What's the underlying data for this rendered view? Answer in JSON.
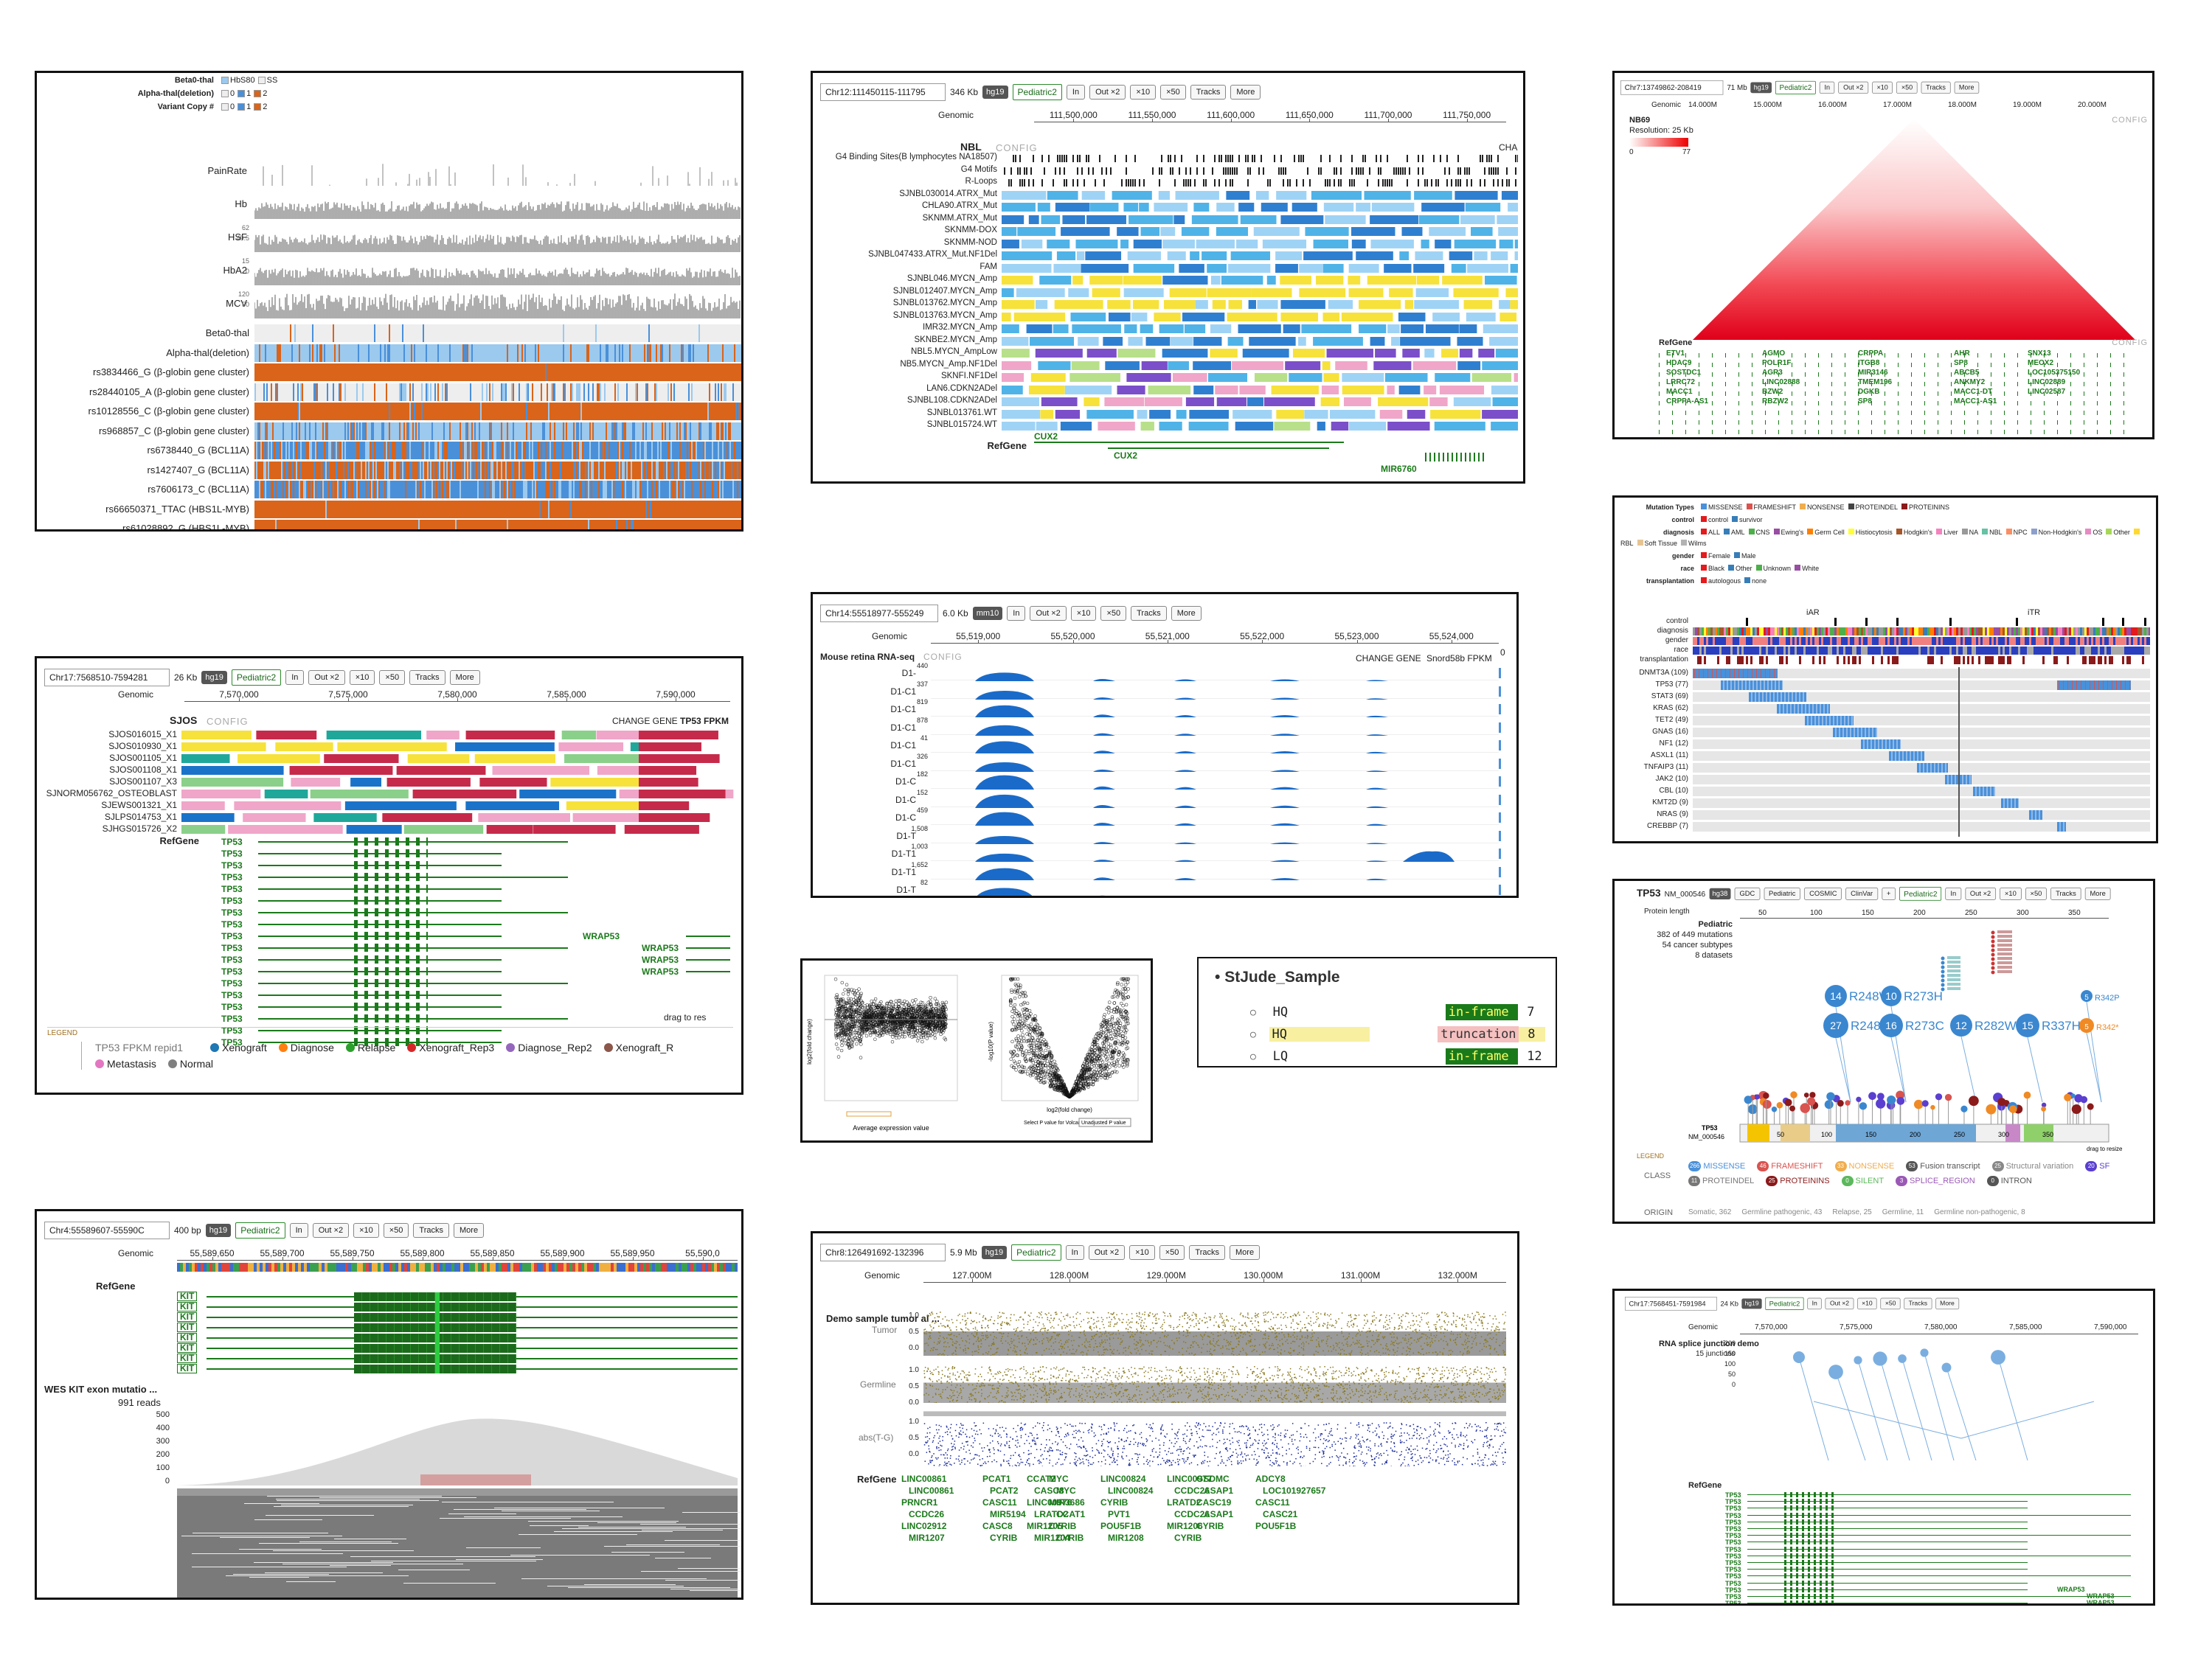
{
  "panel1": {
    "legend": [
      {
        "label": "Beta0-thal",
        "items": [
          "HbS80",
          "SS"
        ]
      },
      {
        "label": "Alpha-thal(deletion)",
        "items": [
          "0",
          "1",
          "2"
        ]
      },
      {
        "label": "Variant Copy #",
        "items": [
          "0",
          "1",
          "2"
        ]
      }
    ],
    "cont_tracks": [
      {
        "label": "PainRate",
        "ticks": []
      },
      {
        "label": "Hb",
        "ticks": []
      },
      {
        "label": "HSF",
        "ticks": [
          "62",
          "49.5"
        ]
      },
      {
        "label": "HbA2",
        "ticks": [
          "15",
          "0"
        ]
      },
      {
        "label": "MCV",
        "ticks": [
          "120",
          "50"
        ]
      }
    ],
    "cat_tracks": [
      "Beta0-thal",
      "Alpha-thal(deletion)",
      "rs3834466_G (β-globin gene cluster)",
      "rs28440105_A (β-globin gene cluster)",
      "rs10128556_C (β-globin gene cluster)",
      "rs968857_C (β-globin gene cluster)",
      "rs6738440_G (BCL11A)",
      "rs1427407_G (BCL11A)",
      "rs7606173_C (BCL11A)",
      "rs66650371_TTAC (HBS1L-MYB)",
      "rs61028892_G (HBS1L-MYB)"
    ],
    "colors": {
      "orange": "#d9641a",
      "blue": "#4a90d9",
      "lightblue": "#9cc9ee",
      "gray": "#888888"
    }
  },
  "panel2": {
    "coord": "Chr12:111450115-111795",
    "size": "346 Kb",
    "genome": "hg19",
    "dataset": "Pediatric2",
    "buttons": [
      "In",
      "Out ×2",
      "×10",
      "×50",
      "Tracks",
      "More"
    ],
    "ruler_label": "Genomic",
    "ruler_ticks": [
      "111,500,000",
      "111,550,000",
      "111,600,000",
      "111,650,000",
      "111,700,000",
      "111,750,000"
    ],
    "group": "NBL",
    "config": "CONFIG",
    "cha": "CHA",
    "tracks": [
      "G4 Binding Sites(B lymphocytes NA18507)",
      "G4 Motifs",
      "R-Loops",
      "SJNBL030014.ATRX_Mut",
      "CHLA90.ATRX_Mut",
      "SKNMM.ATRX_Mut",
      "SKNMM-DOX",
      "SKNMM-NOD",
      "SJNBL047433.ATRX_Mut.NF1Del",
      "FAM",
      "SJNBL046.MYCN_Amp",
      "SJNBL012407.MYCN_Amp",
      "SJNBL013762.MYCN_Amp",
      "SJNBL013763.MYCN_Amp",
      "IMR32.MYCN_Amp",
      "SKNBE2.MYCN_Amp",
      "NBL5.MYCN_AmpLow",
      "NB5.MYCN_Amp.NF1Del",
      "SKNFI.NF1Del",
      "LAN6.CDKN2ADel",
      "SJNBL108.CDKN2ADel",
      "SJNBL013761.WT",
      "SJNBL015724.WT"
    ],
    "refgene": "RefGene",
    "genes": [
      "CUX2",
      "CUX2",
      "MIR6760"
    ]
  },
  "panel3": {
    "coord": "Chr7:13749862-208419",
    "size": "71 Mb",
    "genome": "hg19",
    "dataset": "Pediatric2",
    "buttons": [
      "In",
      "Out ×2",
      "×10",
      "×50",
      "Tracks",
      "More"
    ],
    "ruler_label": "Genomic",
    "ruler_ticks": [
      "14.000M",
      "15.000M",
      "16.000M",
      "17.000M",
      "18.000M",
      "19.000M",
      "20.000M"
    ],
    "sample": "NB69",
    "resolution": "Resolution: 25 Kb",
    "scale": [
      "0",
      "77"
    ],
    "config": "CONFIG",
    "refgene": "RefGene",
    "genes": [
      "ETV1",
      "AGMO",
      "CRPPA",
      "AHR",
      "SNX13",
      "HDAC9",
      "POLR1F",
      "ITGB8",
      "SP8",
      "MEOX2",
      "SOSTDC1",
      "AGR3",
      "MIR3146",
      "ABCB5",
      "LOC105375150",
      "LRRC72",
      "LINC02888",
      "TMEM196",
      "ANKMY2",
      "LINC02889",
      "MACC1",
      "BZW2",
      "DGKB",
      "MACC1-DT",
      "LINC02587",
      "CRPPA-AS1",
      "RBZW2",
      "SP8",
      "MACC1-AS1"
    ]
  },
  "panel4": {
    "legend": [
      {
        "label": "Mutation Types",
        "items": [
          "MISSENSE",
          "FRAMESHIFT",
          "NONSENSE",
          "PROTEINDEL",
          "PROTEININS"
        ]
      },
      {
        "label": "control",
        "items": [
          "control",
          "survivor"
        ]
      },
      {
        "label": "diagnosis",
        "items": [
          "ALL",
          "AML",
          "CNS",
          "Ewing's",
          "Germ Cell",
          "Histiocytosis",
          "Hodgkin's",
          "Liver",
          "NA",
          "NBL",
          "NPC",
          "Non-Hodgkin's",
          "OS",
          "Other",
          "RBL",
          "Soft Tissue",
          "Wilms"
        ]
      },
      {
        "label": "gender",
        "items": [
          "Female",
          "Male"
        ]
      },
      {
        "label": "race",
        "items": [
          "Black",
          "Other",
          "Unknown",
          "White"
        ]
      },
      {
        "label": "transplantation",
        "items": [
          "autologous",
          "none"
        ]
      }
    ],
    "groups": [
      "iAR",
      "iTR"
    ],
    "anno_rows": [
      "control",
      "diagnosis",
      "gender",
      "race",
      "transplantation"
    ],
    "genes": [
      "DNMT3A (109)",
      "TP53 (77)",
      "STAT3 (69)",
      "KRAS (62)",
      "TET2 (49)",
      "GNAS (16)",
      "NF1 (12)",
      "ASXL1 (11)",
      "TNFAIP3 (11)",
      "JAK2 (10)",
      "CBL (10)",
      "KMT2D (9)",
      "NRAS (9)",
      "CREBBP (7)"
    ]
  },
  "panel5": {
    "coord": "Chr17:7568510-7594281",
    "size": "26 Kb",
    "genome": "hg19",
    "dataset": "Pediatric2",
    "buttons": [
      "In",
      "Out ×2",
      "×10",
      "×50",
      "Tracks",
      "More"
    ],
    "ruler_label": "Genomic",
    "ruler_ticks": [
      "7,570,000",
      "7,575,000",
      "7,580,000",
      "7,585,000",
      "7,590,000"
    ],
    "group": "SJOS",
    "config": "CONFIG",
    "change_gene": "CHANGE GENE",
    "tp53": "TP53 FPKM",
    "tracks": [
      "SJOS016015_X1",
      "SJOS010930_X1",
      "SJOS001105_X1",
      "SJOS001108_X1",
      "SJOS001107_X3",
      "SJNORM056762_OSTEOBLAST",
      "SJEWS001321_X1",
      "SJLPS014753_X1",
      "SJHGS015726_X2"
    ],
    "refgene": "RefGene",
    "tp53_gene": "TP53",
    "wrap": "WRAP53",
    "drag": "drag to res",
    "legend_title": "LEGEND",
    "legend_label": "TP53 FPKM repid1",
    "legend_items": [
      {
        "label": "Xenograft",
        "color": "#1f77b4"
      },
      {
        "label": "Diagnose",
        "color": "#ff7f0e"
      },
      {
        "label": "Relapse",
        "color": "#2ca02c"
      },
      {
        "label": "Xenograft_Rep3",
        "color": "#d62728"
      },
      {
        "label": "Diagnose_Rep2",
        "color": "#9467bd"
      },
      {
        "label": "Xenograft_R",
        "color": "#8c564b"
      },
      {
        "label": "Metastasis",
        "color": "#e377c2"
      },
      {
        "label": "Normal",
        "color": "#7f7f7f"
      }
    ]
  },
  "panel6": {
    "coord": "Chr14:55518977-555249",
    "size": "6.0 Kb",
    "genome": "mm10",
    "buttons": [
      "In",
      "Out ×2",
      "×10",
      "×50",
      "Tracks",
      "More"
    ],
    "ruler_label": "Genomic",
    "ruler_ticks": [
      "55,519,000",
      "55,520,000",
      "55,521,000",
      "55,522,000",
      "55,523,000",
      "55,524,000"
    ],
    "title": "Mouse retina RNA-seq",
    "config": "CONFIG",
    "change_gene": "CHANGE GENE",
    "fpkm": "Snord58b FPKM",
    "zero": "0",
    "rows": [
      {
        "label": "D1-",
        "tick": "440"
      },
      {
        "label": "D1-C1",
        "tick": "337"
      },
      {
        "label": "D1-C1",
        "tick": "819"
      },
      {
        "label": "D1-C1",
        "tick": "878"
      },
      {
        "label": "D1-C1",
        "tick": "41"
      },
      {
        "label": "D1-C1",
        "tick": "326"
      },
      {
        "label": "D1-C",
        "tick": "182"
      },
      {
        "label": "D1-C",
        "tick": "152"
      },
      {
        "label": "D1-C",
        "tick": "459"
      },
      {
        "label": "D1-T",
        "tick": "1,508"
      },
      {
        "label": "D1-T1",
        "tick": "1,003"
      },
      {
        "label": "D1-T1",
        "tick": "1,652"
      },
      {
        "label": "D1-T",
        "tick": "82"
      }
    ]
  },
  "panel7": {
    "xlabel1": "Average expression value",
    "xlabel2": "log2(fold change)",
    "ylabel1": "log2(fold change)",
    "ylabel2": "-log10(P value)",
    "select": "Select P value for Volcano plot:",
    "select_value": "Unadjusted P value"
  },
  "panel8": {
    "title": "StJude_Sample",
    "rows": [
      {
        "label": "HQ",
        "tag": "in-frame",
        "count": "7",
        "highlight": false
      },
      {
        "label": "HQ",
        "tag": "truncation",
        "count": "8",
        "highlight": true
      },
      {
        "label": "LQ",
        "tag": "in-frame",
        "count": "12",
        "highlight": false
      },
      {
        "label": "LQ",
        "tag": "truncation",
        "count": "8",
        "highlight": false
      }
    ]
  },
  "panel9": {
    "gene": "TP53",
    "isoform": "NM_000546",
    "genome": "hg38",
    "tabs": [
      "GDC",
      "Pediatric",
      "COSMIC",
      "ClinVar",
      "+"
    ],
    "dataset": "Pediatric2",
    "buttons": [
      "In",
      "Out ×2",
      "×10",
      "×50",
      "Tracks",
      "More"
    ],
    "protein_label": "Protein length",
    "ticks": [
      "50",
      "100",
      "150",
      "200",
      "250",
      "300",
      "350"
    ],
    "summary": [
      "Pediatric",
      "382 of 449 mutations",
      "54 cancer subtypes",
      "8 datasets"
    ],
    "bubbles": [
      {
        "count": "14",
        "label": "R248W"
      },
      {
        "count": "10",
        "label": "R273H"
      },
      {
        "count": "27",
        "label": "R248Q"
      },
      {
        "count": "16",
        "label": "R273C"
      },
      {
        "count": "12",
        "label": "R282W"
      },
      {
        "count": "15",
        "label": "R337H"
      },
      {
        "count": "5",
        "label": "R342P"
      },
      {
        "count": "5",
        "label": "R342*"
      }
    ],
    "class_label": "CLASS",
    "origin_label": "ORIGIN",
    "legend_title": "LEGEND",
    "drag": "drag to resize",
    "classes": [
      {
        "n": "266",
        "label": "MISSENSE",
        "color": "#4a90d9"
      },
      {
        "n": "46",
        "label": "FRAMESHIFT",
        "color": "#d9534f"
      },
      {
        "n": "33",
        "label": "NONSENSE",
        "color": "#f0ad4e"
      },
      {
        "n": "53",
        "label": "Fusion transcript",
        "color": "#555"
      },
      {
        "n": "25",
        "label": "Structural variation",
        "color": "#888"
      },
      {
        "n": "20",
        "label": "SF",
        "color": "#5a3fd0"
      },
      {
        "n": "11",
        "label": "PROTEINDEL",
        "color": "#777"
      },
      {
        "n": "25",
        "label": "PROTEININS",
        "color": "#8b1a1a"
      },
      {
        "n": "0",
        "label": "SILENT",
        "color": "#5cb85c"
      },
      {
        "n": "3",
        "label": "SPLICE_REGION",
        "color": "#9b59b6"
      },
      {
        "n": "0",
        "label": "INTRON",
        "color": "#555"
      }
    ],
    "origins": [
      "Somatic, 362",
      "Germline pathogenic, 43",
      "Relapse, 25",
      "Germline, 11",
      "Germline non-pathogenic, 8"
    ],
    "domain_start": "1",
    "domain_labels": [
      "50",
      "100",
      "150",
      "200",
      "250",
      "300",
      "350"
    ]
  },
  "panel10": {
    "coord": "Chr4:55589607-55590C",
    "size": "400 bp",
    "genome": "hg19",
    "dataset": "Pediatric2",
    "buttons": [
      "In",
      "Out ×2",
      "×10",
      "×50",
      "Tracks",
      "More"
    ],
    "ruler_label": "Genomic",
    "ruler_ticks": [
      "55,589,650",
      "55,589,700",
      "55,589,750",
      "55,589,800",
      "55,589,850",
      "55,589,900",
      "55,589,950",
      "55,590,0"
    ],
    "refgene": "RefGene",
    "kit": "KIT",
    "wes_title": "WES KIT exon mutatio ...",
    "reads": "991 reads",
    "yticks": [
      "500",
      "400",
      "300",
      "200",
      "100",
      "0"
    ]
  },
  "panel11": {
    "coord": "Chr8:126491692-132396",
    "size": "5.9 Mb",
    "genome": "hg19",
    "dataset": "Pediatric2",
    "buttons": [
      "In",
      "Out ×2",
      "×10",
      "×50",
      "Tracks",
      "More"
    ],
    "ruler_label": "Genomic",
    "ruler_ticks": [
      "127.000M",
      "128.000M",
      "129.000M",
      "130.000M",
      "131.000M",
      "132.000M"
    ],
    "title": "Demo sample tumor al ...",
    "tumor": "Tumor",
    "germline": "Germline",
    "abs": "abs(T-G)",
    "yticks": [
      "1.0",
      "0.5",
      "0.0"
    ],
    "refgene": "RefGene",
    "genes": [
      "LINC00861",
      "PCAT1",
      "CCAT2",
      "MYC",
      "LINC00824",
      "LINC00977",
      "GSDMC",
      "ADCY8",
      "LINC00861",
      "PCAT2",
      "CASC8",
      "MYC",
      "LINC00824",
      "CCDC26",
      "ASAP1",
      "LOC101927657",
      "PRNCR1",
      "CASC11",
      "LINC00976",
      "MIR3686",
      "CYRIB",
      "LRATD2",
      "CASC19",
      "CASC11",
      "CCDC26",
      "MIR5194",
      "LRATD2",
      "CCAT1",
      "PVT1",
      "CCDC26",
      "ASAP1",
      "CASC21",
      "LINC02912",
      "CASC8",
      "MIR1205",
      "CYRIB",
      "POU5F1B",
      "MIR1206",
      "CYRIB",
      "POU5F1B",
      "MIR1207",
      "CYRIB",
      "MIR1204",
      "CYRIB",
      "MIR1208",
      "CYRIB"
    ]
  },
  "panel12": {
    "coord": "Chr17:7568451-7591984",
    "size": "24 Kb",
    "genome": "hg19",
    "dataset": "Pediatric2",
    "buttons": [
      "In",
      "Out ×2",
      "×10",
      "×50",
      "Tracks",
      "More"
    ],
    "ruler_label": "Genomic",
    "ruler_ticks": [
      "7,570,000",
      "7,575,000",
      "7,580,000",
      "7,585,000",
      "7,590,000"
    ],
    "title": "RNA splice junction demo",
    "subtitle": "15 junctions",
    "yticks": [
      "200",
      "150",
      "100",
      "50",
      "0"
    ],
    "refgene": "RefGene",
    "tp53": "TP53",
    "wrap": "WRAP53"
  }
}
